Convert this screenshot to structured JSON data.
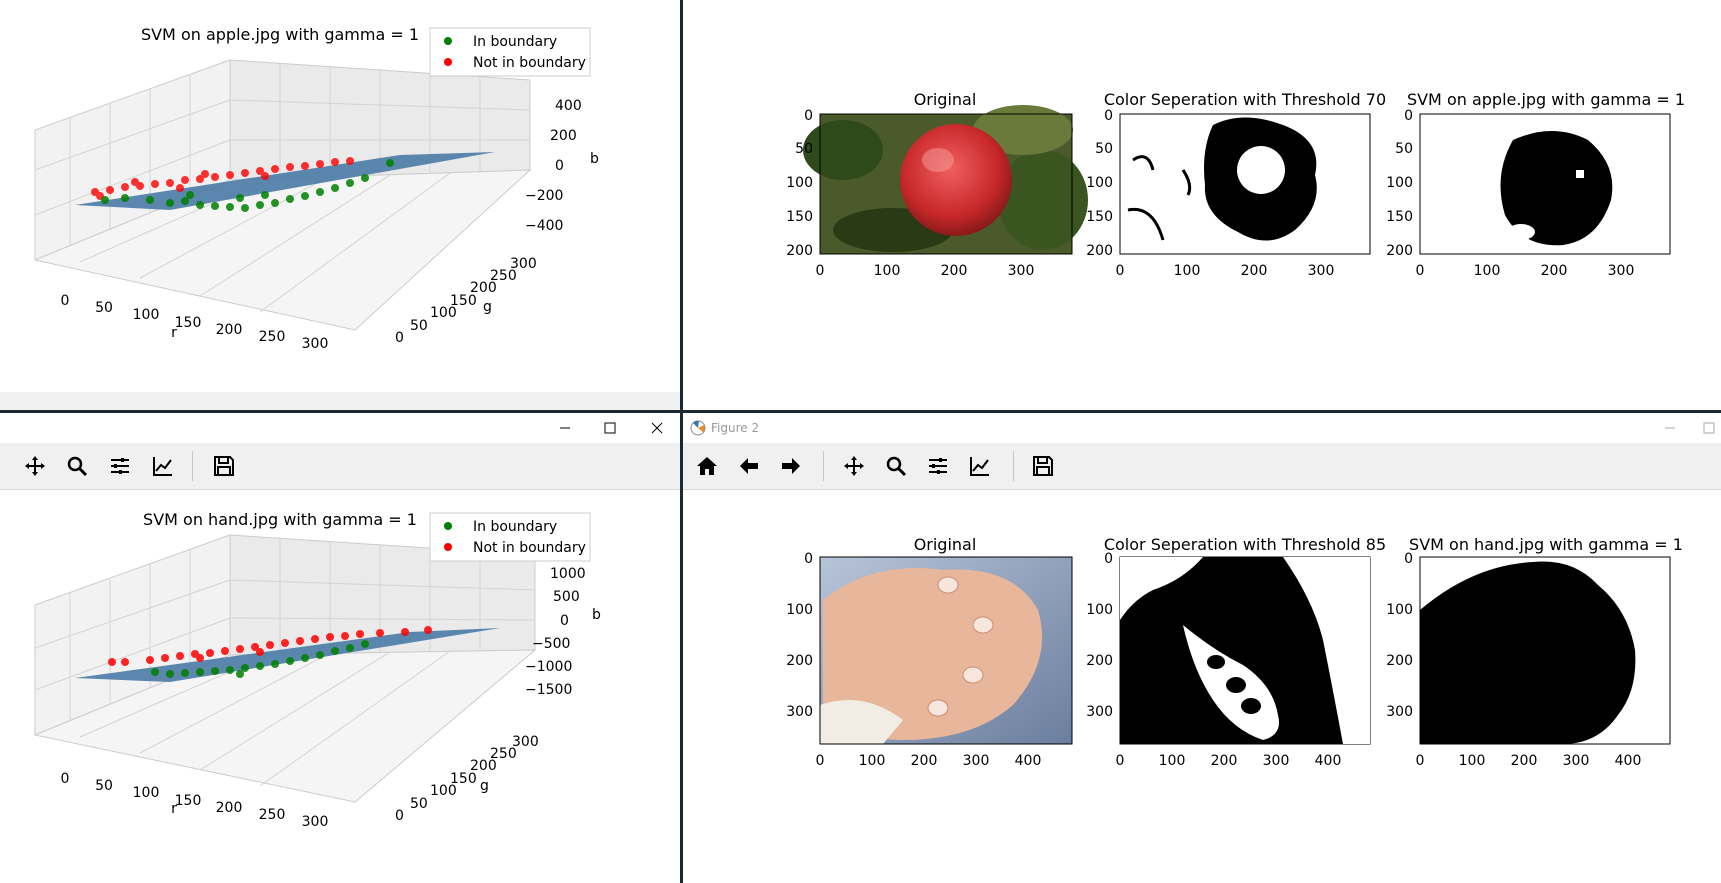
{
  "top_left": {
    "title": "SVM on apple.jpg with gamma = 1",
    "legend": [
      "In boundary",
      "Not in boundary"
    ],
    "axis_r_label": "r",
    "axis_g_label": "g",
    "axis_b_label": "b",
    "r_ticks": [
      "0",
      "50",
      "100",
      "150",
      "200",
      "250",
      "300"
    ],
    "g_ticks": [
      "0",
      "50",
      "100",
      "150",
      "200",
      "250",
      "300"
    ],
    "b_ticks": [
      "400",
      "200",
      "0",
      "−200",
      "−400"
    ]
  },
  "top_right": {
    "panels": [
      {
        "title": "Original",
        "y_ticks": [
          "0",
          "50",
          "100",
          "150",
          "200"
        ],
        "x_ticks": [
          "0",
          "100",
          "200",
          "300"
        ]
      },
      {
        "title": "Color Seperation with Threshold 70",
        "y_ticks": [
          "0",
          "50",
          "100",
          "150",
          "200"
        ],
        "x_ticks": [
          "0",
          "100",
          "200",
          "300"
        ]
      },
      {
        "title": "SVM on apple.jpg with gamma = 1",
        "y_ticks": [
          "0",
          "50",
          "100",
          "150",
          "200"
        ],
        "x_ticks": [
          "0",
          "100",
          "200",
          "300"
        ]
      }
    ]
  },
  "bottom_left": {
    "title": "SVM on hand.jpg with gamma = 1",
    "legend": [
      "In boundary",
      "Not in boundary"
    ],
    "axis_r_label": "r",
    "axis_g_label": "g",
    "axis_b_label": "b",
    "r_ticks": [
      "0",
      "50",
      "100",
      "150",
      "200",
      "250",
      "300"
    ],
    "g_ticks": [
      "0",
      "50",
      "100",
      "150",
      "200",
      "250",
      "300"
    ],
    "b_ticks": [
      "1000",
      "500",
      "0",
      "−500",
      "−1000",
      "−1500"
    ]
  },
  "bottom_right": {
    "window_title": "Figure 2",
    "panels": [
      {
        "title": "Original",
        "y_ticks": [
          "0",
          "100",
          "200",
          "300"
        ],
        "x_ticks": [
          "0",
          "100",
          "200",
          "300",
          "400"
        ]
      },
      {
        "title": "Color Seperation with Threshold 85",
        "y_ticks": [
          "0",
          "100",
          "200",
          "300"
        ],
        "x_ticks": [
          "0",
          "100",
          "200",
          "300",
          "400"
        ]
      },
      {
        "title": "SVM on hand.jpg with gamma = 1",
        "y_ticks": [
          "0",
          "100",
          "200",
          "300"
        ],
        "x_ticks": [
          "0",
          "100",
          "200",
          "300",
          "400"
        ]
      }
    ]
  },
  "toolbar_icons": [
    "home-icon",
    "back-icon",
    "forward-icon",
    "pan-icon",
    "zoom-icon",
    "subplots-icon",
    "lines-icon",
    "save-icon"
  ],
  "colors": {
    "in_boundary": "#008000",
    "not_in_boundary": "#ff0000",
    "plane": "#4a7ba6",
    "toolbar_bg": "#f0f0f0"
  }
}
